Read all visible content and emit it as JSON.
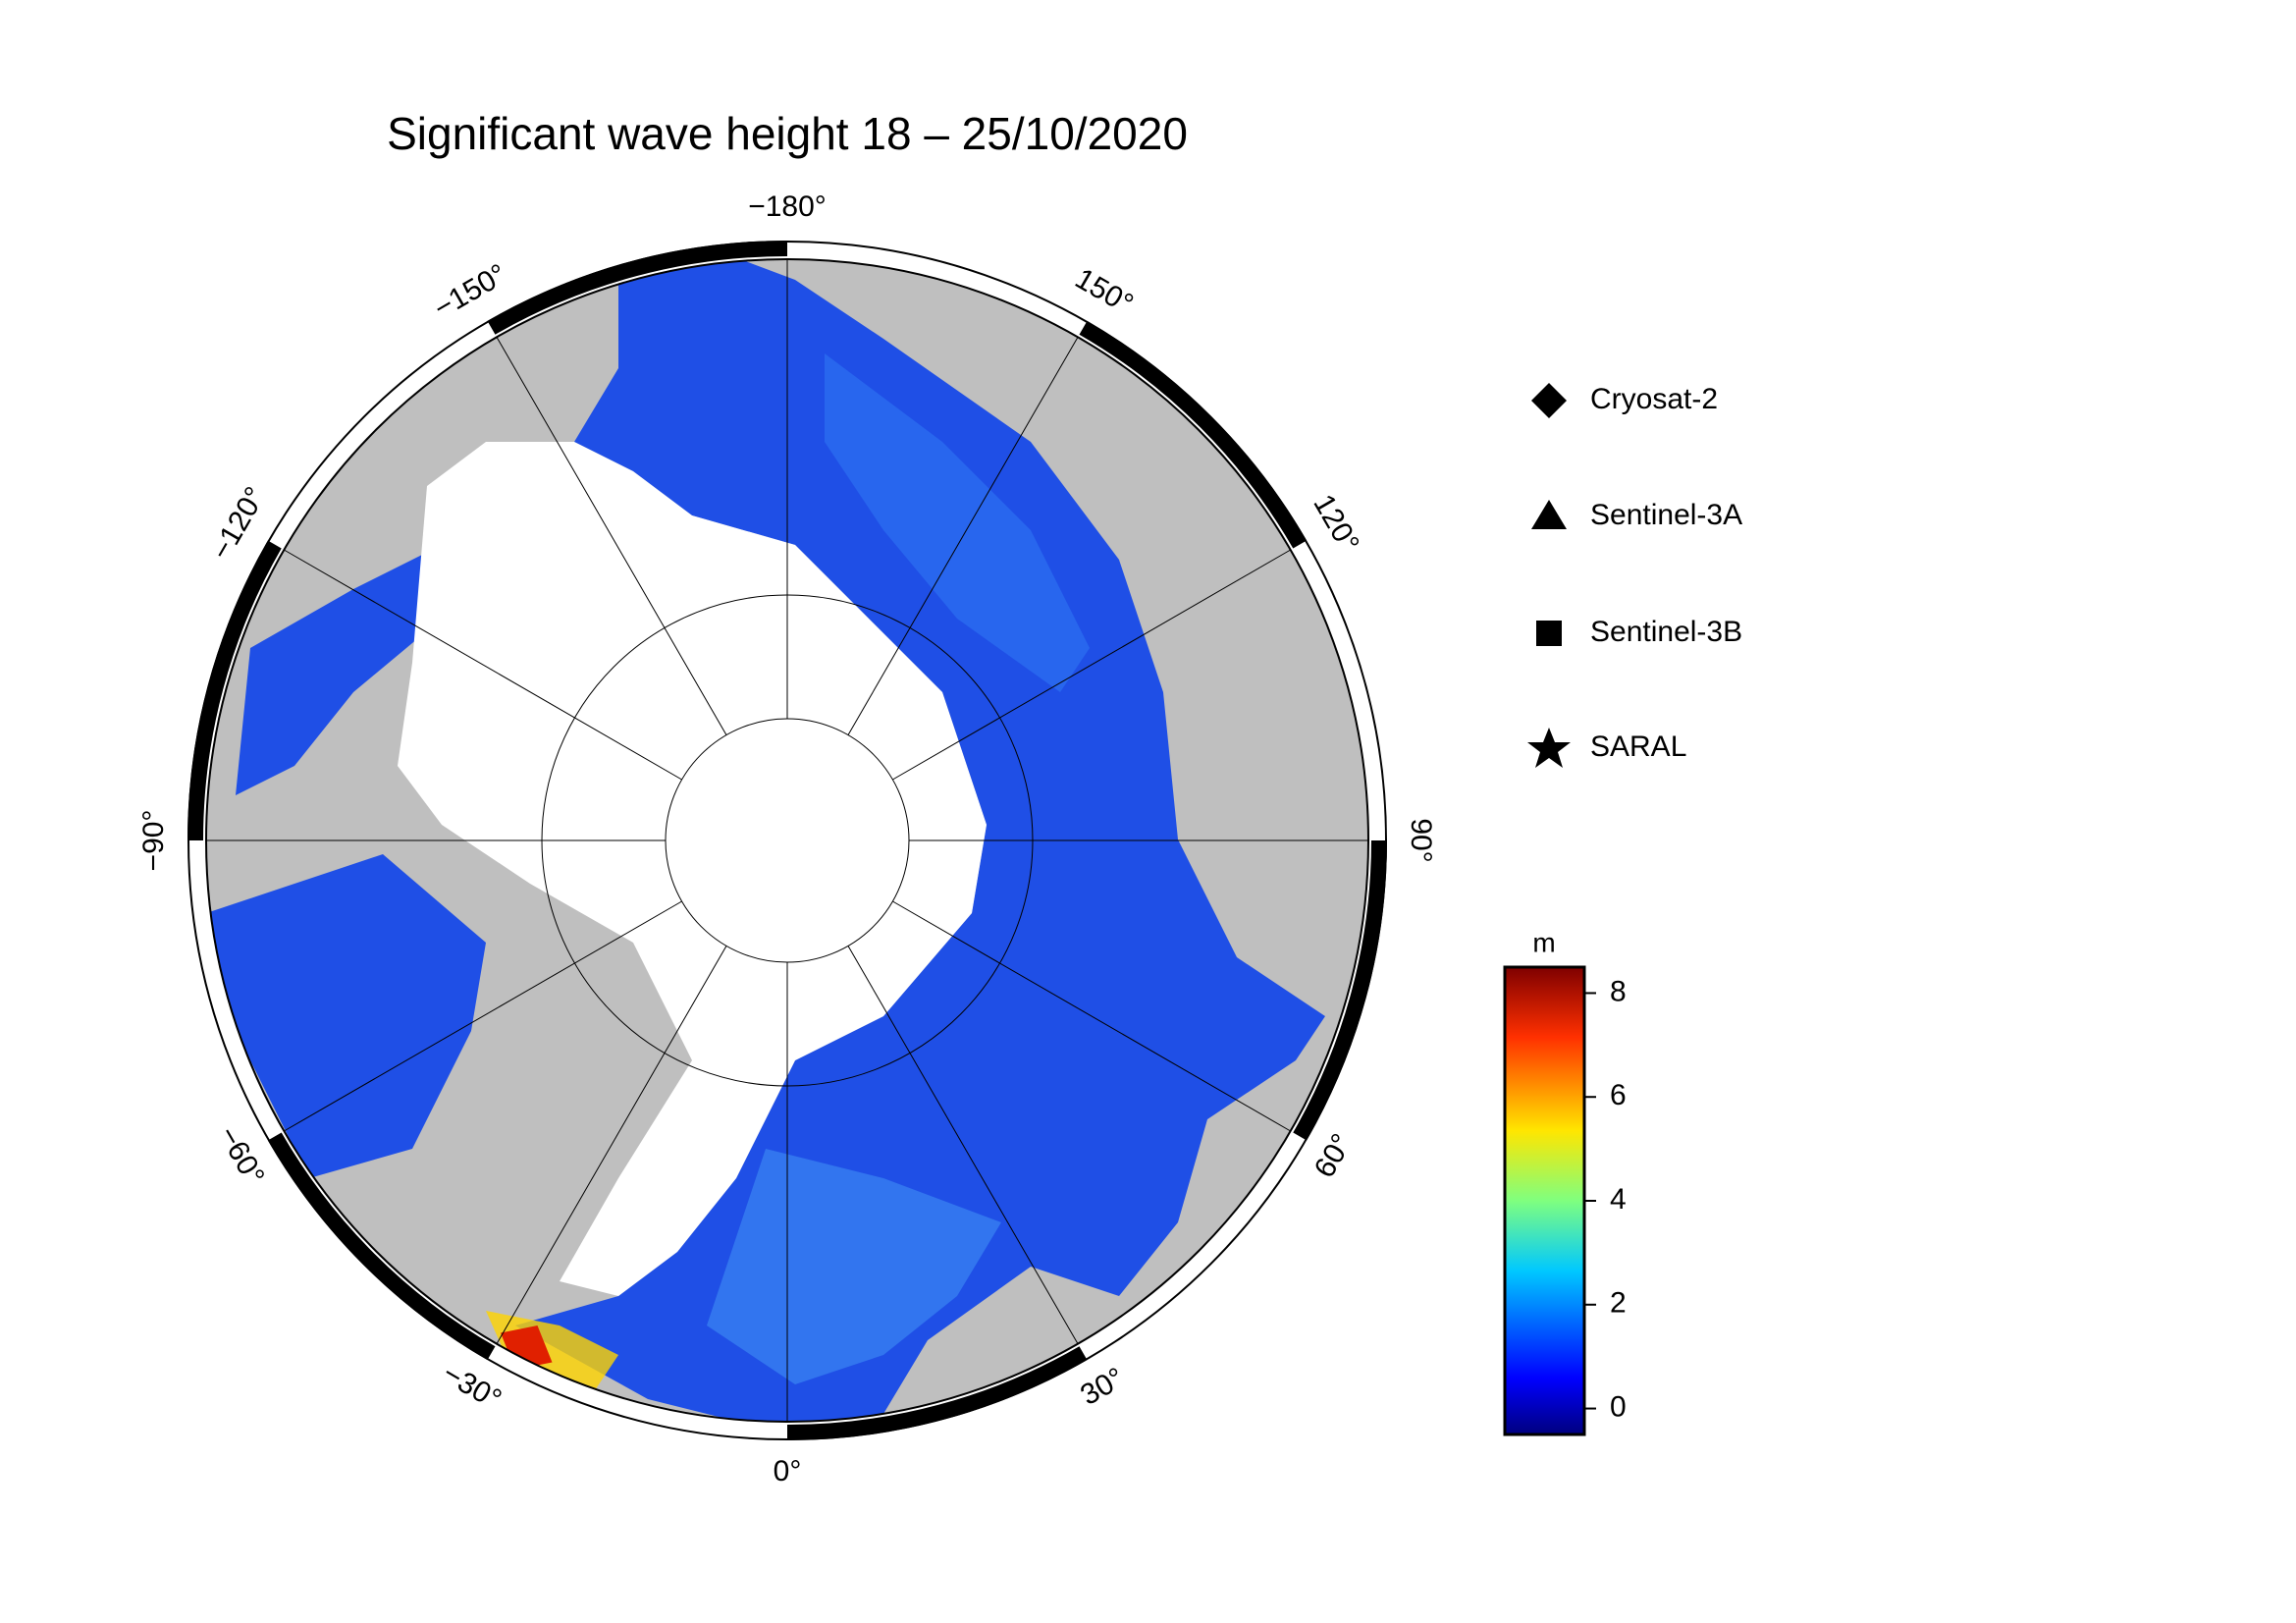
{
  "title": "Significant wave height 18 – 25/10/2020",
  "map": {
    "longitude_labels": [
      {
        "value": 0,
        "label": "0°"
      },
      {
        "value": 30,
        "label": "30°"
      },
      {
        "value": 60,
        "label": "60°"
      },
      {
        "value": 90,
        "label": "90°"
      },
      {
        "value": 120,
        "label": "120°"
      },
      {
        "value": 150,
        "label": "150°"
      },
      {
        "value": -180,
        "label": "−180°"
      },
      {
        "value": -150,
        "label": "−150°"
      },
      {
        "value": -120,
        "label": "−120°"
      },
      {
        "value": -90,
        "label": "−90°"
      },
      {
        "value": -60,
        "label": "−60°"
      },
      {
        "value": -30,
        "label": "−30°"
      }
    ]
  },
  "legend": {
    "items": [
      "Cryosat-2",
      "Sentinel-3A",
      "Sentinel-3B",
      "SARAL"
    ]
  },
  "colorbar": {
    "label": "m",
    "lim": [
      -0.5,
      8.5
    ],
    "ticks": [
      0,
      2,
      4,
      6,
      8
    ]
  }
}
